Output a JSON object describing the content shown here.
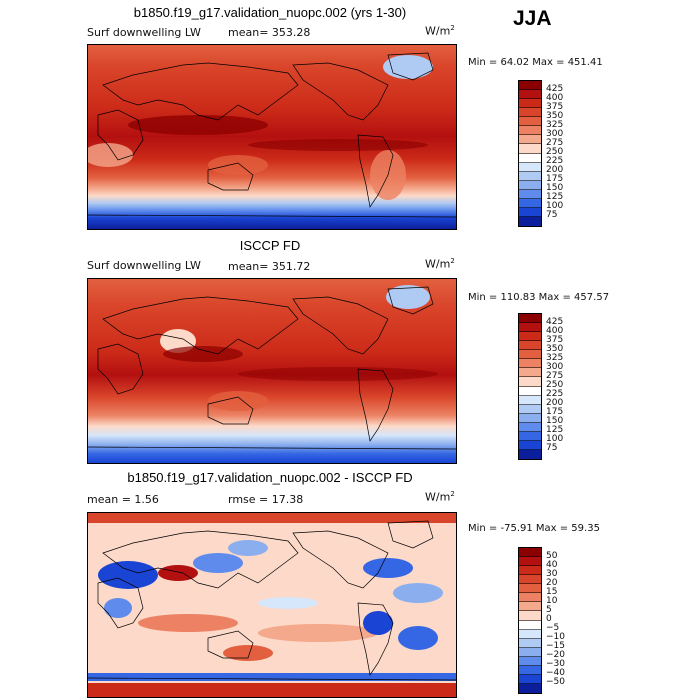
{
  "season": "JJA",
  "panels": [
    {
      "title": "b1850.f19_g17.validation_nuopc.002 (yrs 1-30)",
      "field": "Surf downwelling LW",
      "stat": "mean= 353.28",
      "units_base": "W/m",
      "units_exp": "2",
      "minmax": "Min =  64.02 Max = 451.41",
      "colorbar": {
        "labels": [
          "425",
          "400",
          "375",
          "350",
          "325",
          "300",
          "275",
          "250",
          "225",
          "200",
          "175",
          "150",
          "125",
          "100",
          "75"
        ],
        "colors": [
          "#8b0000",
          "#b31010",
          "#cc2a18",
          "#d9452a",
          "#e2603f",
          "#ec8263",
          "#f4a88c",
          "#fcd9c8",
          "#ffffff",
          "#d6e6fb",
          "#afcbf3",
          "#8aaeee",
          "#5f8cec",
          "#3567e4",
          "#1a44d3",
          "#0b1f9c"
        ]
      }
    },
    {
      "title": "ISCCP FD",
      "field": "Surf downwelling LW",
      "stat": "mean= 351.72",
      "units_base": "W/m",
      "units_exp": "2",
      "minmax": "Min = 110.83 Max = 457.57",
      "colorbar": {
        "labels": [
          "425",
          "400",
          "375",
          "350",
          "325",
          "300",
          "275",
          "250",
          "225",
          "200",
          "175",
          "150",
          "125",
          "100",
          "75"
        ],
        "colors": [
          "#8b0000",
          "#b31010",
          "#cc2a18",
          "#d9452a",
          "#e2603f",
          "#ec8263",
          "#f4a88c",
          "#fcd9c8",
          "#ffffff",
          "#d6e6fb",
          "#afcbf3",
          "#8aaeee",
          "#5f8cec",
          "#3567e4",
          "#1a44d3",
          "#0b1f9c"
        ]
      }
    },
    {
      "title": "b1850.f19_g17.validation_nuopc.002 - ISCCP FD",
      "stat_mean": "mean =   1.56",
      "stat_rmse": "rmse =  17.38",
      "units_base": "W/m",
      "units_exp": "2",
      "minmax": "Min = -75.91 Max =  59.35",
      "colorbar": {
        "labels": [
          "50",
          "40",
          "30",
          "20",
          "15",
          "10",
          "5",
          "0",
          "−5",
          "−10",
          "−15",
          "−20",
          "−30",
          "−40",
          "−50"
        ],
        "colors": [
          "#8b0000",
          "#b31010",
          "#cc2a18",
          "#d9452a",
          "#e2603f",
          "#ec8263",
          "#f4a88c",
          "#fcd9c8",
          "#ffffff",
          "#d6e6fb",
          "#afcbf3",
          "#8aaeee",
          "#5f8cec",
          "#3567e4",
          "#1a44d3",
          "#0b1f9c"
        ]
      }
    }
  ]
}
